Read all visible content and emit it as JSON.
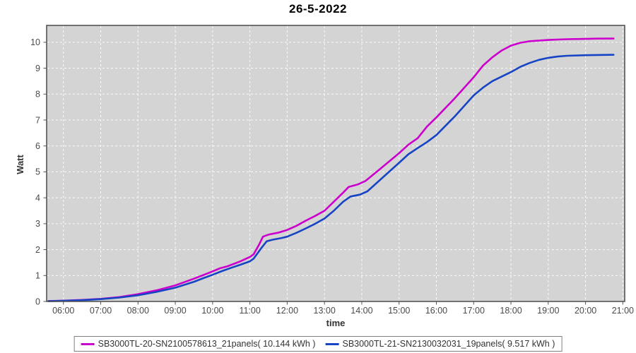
{
  "title": "26-5-2022",
  "chart_data": {
    "type": "line",
    "title": "26-5-2022",
    "xlabel": "time",
    "ylabel": "Watt",
    "xlim": [
      5.55,
      21.05
    ],
    "ylim": [
      0,
      10.65
    ],
    "grid": "white dashed on gray plot background",
    "plot_bg": "#d4d4d4",
    "border_color": "#545454",
    "tick_label_color": "#4a4a4a",
    "legend_position": "bottom-center",
    "x_ticks": [
      {
        "v": 6,
        "label": "06:00"
      },
      {
        "v": 7,
        "label": "07:00"
      },
      {
        "v": 8,
        "label": "08:00"
      },
      {
        "v": 9,
        "label": "09:00"
      },
      {
        "v": 10,
        "label": "10:00"
      },
      {
        "v": 11,
        "label": "11:00"
      },
      {
        "v": 12,
        "label": "12:00"
      },
      {
        "v": 13,
        "label": "13:00"
      },
      {
        "v": 14,
        "label": "14:00"
      },
      {
        "v": 15,
        "label": "15:00"
      },
      {
        "v": 16,
        "label": "16:00"
      },
      {
        "v": 17,
        "label": "17:00"
      },
      {
        "v": 18,
        "label": "18:00"
      },
      {
        "v": 19,
        "label": "19:00"
      },
      {
        "v": 20,
        "label": "20:00"
      },
      {
        "v": 21,
        "label": "21:00"
      }
    ],
    "y_ticks": [
      0,
      1,
      2,
      3,
      4,
      5,
      6,
      7,
      8,
      9,
      10
    ],
    "series": [
      {
        "name": "SB3000TL-20-SN2100578613_21panels",
        "total_kwh": 10.144,
        "label": "SB3000TL-20-SN2100578613_21panels( 10.144 kWh )",
        "color": "#cc00cc",
        "points": [
          [
            5.6,
            0.015
          ],
          [
            6.0,
            0.03
          ],
          [
            6.5,
            0.06
          ],
          [
            7.0,
            0.1
          ],
          [
            7.5,
            0.17
          ],
          [
            8.0,
            0.28
          ],
          [
            8.5,
            0.43
          ],
          [
            9.0,
            0.62
          ],
          [
            9.5,
            0.88
          ],
          [
            9.75,
            1.02
          ],
          [
            10.0,
            1.16
          ],
          [
            10.2,
            1.28
          ],
          [
            10.4,
            1.36
          ],
          [
            10.75,
            1.55
          ],
          [
            11.0,
            1.72
          ],
          [
            11.1,
            1.82
          ],
          [
            11.25,
            2.2
          ],
          [
            11.35,
            2.5
          ],
          [
            11.5,
            2.58
          ],
          [
            11.75,
            2.65
          ],
          [
            12.0,
            2.76
          ],
          [
            12.25,
            2.92
          ],
          [
            12.5,
            3.12
          ],
          [
            12.75,
            3.3
          ],
          [
            13.0,
            3.5
          ],
          [
            13.25,
            3.85
          ],
          [
            13.5,
            4.2
          ],
          [
            13.65,
            4.42
          ],
          [
            13.9,
            4.52
          ],
          [
            14.1,
            4.65
          ],
          [
            14.5,
            5.12
          ],
          [
            15.0,
            5.72
          ],
          [
            15.25,
            6.05
          ],
          [
            15.5,
            6.3
          ],
          [
            15.75,
            6.75
          ],
          [
            16.0,
            7.1
          ],
          [
            16.5,
            7.85
          ],
          [
            17.0,
            8.65
          ],
          [
            17.25,
            9.1
          ],
          [
            17.5,
            9.42
          ],
          [
            17.75,
            9.68
          ],
          [
            18.0,
            9.87
          ],
          [
            18.25,
            9.98
          ],
          [
            18.5,
            10.04
          ],
          [
            19.0,
            10.09
          ],
          [
            19.5,
            10.12
          ],
          [
            20.0,
            10.13
          ],
          [
            20.3,
            10.14
          ],
          [
            20.75,
            10.144
          ]
        ]
      },
      {
        "name": "SB3000TL-21-SN2130032031_19panels",
        "total_kwh": 9.517,
        "label": "SB3000TL-21-SN2130032031_19panels( 9.517 kWh )",
        "color": "#1644c4",
        "points": [
          [
            5.6,
            0.01
          ],
          [
            6.0,
            0.025
          ],
          [
            6.5,
            0.05
          ],
          [
            7.0,
            0.09
          ],
          [
            7.5,
            0.15
          ],
          [
            8.0,
            0.24
          ],
          [
            8.5,
            0.37
          ],
          [
            9.0,
            0.53
          ],
          [
            9.5,
            0.76
          ],
          [
            9.75,
            0.9
          ],
          [
            10.0,
            1.03
          ],
          [
            10.25,
            1.17
          ],
          [
            10.5,
            1.3
          ],
          [
            10.75,
            1.42
          ],
          [
            11.0,
            1.55
          ],
          [
            11.1,
            1.65
          ],
          [
            11.3,
            2.05
          ],
          [
            11.45,
            2.32
          ],
          [
            11.6,
            2.38
          ],
          [
            11.85,
            2.45
          ],
          [
            12.0,
            2.5
          ],
          [
            12.25,
            2.65
          ],
          [
            12.5,
            2.82
          ],
          [
            12.75,
            3.0
          ],
          [
            13.0,
            3.2
          ],
          [
            13.25,
            3.5
          ],
          [
            13.5,
            3.85
          ],
          [
            13.7,
            4.05
          ],
          [
            13.95,
            4.12
          ],
          [
            14.15,
            4.25
          ],
          [
            14.5,
            4.7
          ],
          [
            15.0,
            5.35
          ],
          [
            15.25,
            5.68
          ],
          [
            15.5,
            5.92
          ],
          [
            15.75,
            6.15
          ],
          [
            16.0,
            6.42
          ],
          [
            16.5,
            7.15
          ],
          [
            17.0,
            7.95
          ],
          [
            17.25,
            8.25
          ],
          [
            17.5,
            8.5
          ],
          [
            18.0,
            8.85
          ],
          [
            18.25,
            9.05
          ],
          [
            18.5,
            9.2
          ],
          [
            18.75,
            9.32
          ],
          [
            19.0,
            9.4
          ],
          [
            19.25,
            9.45
          ],
          [
            19.5,
            9.48
          ],
          [
            20.0,
            9.5
          ],
          [
            20.3,
            9.51
          ],
          [
            20.75,
            9.517
          ]
        ]
      }
    ]
  }
}
